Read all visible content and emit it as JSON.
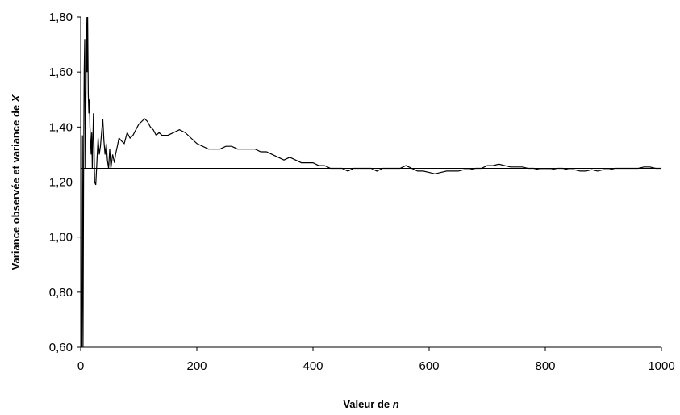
{
  "chart_data": {
    "type": "line",
    "title": "",
    "xlabel_prefix": "Valeur de ",
    "xlabel_var": "n",
    "ylabel_prefix": "Variance observée et variance de ",
    "ylabel_var": "X",
    "xlim": [
      0,
      1000
    ],
    "ylim": [
      0.6,
      1.8
    ],
    "x_ticks": [
      0,
      200,
      400,
      600,
      800,
      1000
    ],
    "x_tick_labels": [
      "0",
      "200",
      "400",
      "600",
      "800",
      "1000"
    ],
    "y_ticks": [
      0.6,
      0.8,
      1.0,
      1.2,
      1.4,
      1.6,
      1.8
    ],
    "y_tick_labels": [
      "0,60",
      "0,80",
      "1,00",
      "1,20",
      "1,40",
      "1,60",
      "1,80"
    ],
    "grid": false,
    "legend": "none",
    "reference_value": 1.25,
    "series": [
      {
        "x": [
          2,
          3,
          4,
          5,
          6,
          7,
          8,
          9,
          10,
          11,
          12,
          13,
          14,
          15,
          16,
          17,
          18,
          19,
          20,
          22,
          24,
          26,
          28,
          30,
          32,
          34,
          36,
          38,
          40,
          42,
          44,
          46,
          48,
          50,
          52,
          55,
          58,
          60,
          63,
          66,
          70,
          75,
          80,
          85,
          90,
          95,
          100,
          105,
          110,
          115,
          120,
          125,
          130,
          135,
          140,
          150,
          160,
          170,
          180,
          190,
          200,
          210,
          220,
          230,
          240,
          250,
          260,
          270,
          280,
          290,
          300,
          310,
          320,
          330,
          340,
          350,
          360,
          370,
          380,
          390,
          400,
          410,
          420,
          430,
          440,
          450,
          460,
          470,
          480,
          490,
          500,
          510,
          520,
          530,
          540,
          550,
          560,
          570,
          580,
          590,
          600,
          610,
          620,
          630,
          640,
          650,
          660,
          670,
          680,
          690,
          700,
          710,
          720,
          730,
          740,
          750,
          760,
          770,
          780,
          790,
          800,
          810,
          820,
          830,
          840,
          850,
          860,
          870,
          880,
          890,
          900,
          910,
          920,
          930,
          940,
          950,
          960,
          970,
          980,
          990,
          1000
        ],
        "y": [
          0.6,
          1.37,
          0.6,
          1.22,
          1.6,
          1.72,
          1.25,
          1.5,
          1.8,
          1.6,
          1.8,
          1.52,
          1.45,
          1.5,
          1.4,
          1.35,
          1.3,
          1.38,
          1.25,
          1.45,
          1.2,
          1.19,
          1.28,
          1.36,
          1.3,
          1.33,
          1.38,
          1.43,
          1.35,
          1.3,
          1.34,
          1.28,
          1.25,
          1.32,
          1.25,
          1.3,
          1.27,
          1.3,
          1.33,
          1.36,
          1.35,
          1.34,
          1.38,
          1.36,
          1.37,
          1.39,
          1.41,
          1.42,
          1.43,
          1.42,
          1.4,
          1.39,
          1.37,
          1.38,
          1.37,
          1.37,
          1.38,
          1.39,
          1.38,
          1.36,
          1.34,
          1.33,
          1.32,
          1.32,
          1.32,
          1.33,
          1.33,
          1.32,
          1.32,
          1.32,
          1.32,
          1.31,
          1.31,
          1.3,
          1.29,
          1.28,
          1.29,
          1.28,
          1.27,
          1.27,
          1.27,
          1.26,
          1.26,
          1.25,
          1.25,
          1.25,
          1.24,
          1.25,
          1.25,
          1.25,
          1.25,
          1.24,
          1.25,
          1.25,
          1.25,
          1.25,
          1.26,
          1.25,
          1.24,
          1.24,
          1.235,
          1.23,
          1.235,
          1.24,
          1.24,
          1.24,
          1.245,
          1.245,
          1.25,
          1.25,
          1.26,
          1.26,
          1.265,
          1.26,
          1.255,
          1.255,
          1.255,
          1.25,
          1.25,
          1.245,
          1.245,
          1.245,
          1.25,
          1.25,
          1.245,
          1.245,
          1.24,
          1.24,
          1.245,
          1.24,
          1.245,
          1.245,
          1.25,
          1.25,
          1.25,
          1.25,
          1.25,
          1.255,
          1.255,
          1.25,
          1.25
        ]
      }
    ]
  }
}
